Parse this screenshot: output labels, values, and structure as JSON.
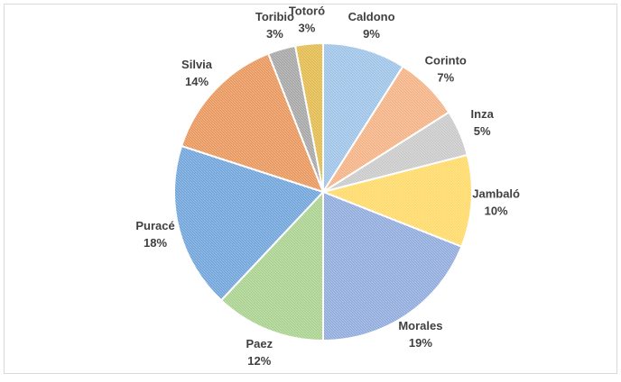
{
  "chart_data": {
    "type": "pie",
    "categories": [
      "Caldono",
      "Corinto",
      "Inza",
      "Jambaló",
      "Morales",
      "Paez",
      "Puracé",
      "Silvia",
      "Toribio",
      "Totoró"
    ],
    "values": [
      9,
      7,
      5,
      10,
      19,
      12,
      18,
      14,
      3,
      3
    ],
    "value_labels": [
      "9%",
      "7%",
      "5%",
      "10%",
      "19%",
      "12%",
      "18%",
      "14%",
      "3%",
      "3%"
    ],
    "colors": [
      "#9dc3e6",
      "#f4b183",
      "#c9c9c9",
      "#ffd966",
      "#8faadc",
      "#a9d18e",
      "#6fa3da",
      "#e8955a",
      "#a5a5a5",
      "#e2ba4c"
    ]
  }
}
